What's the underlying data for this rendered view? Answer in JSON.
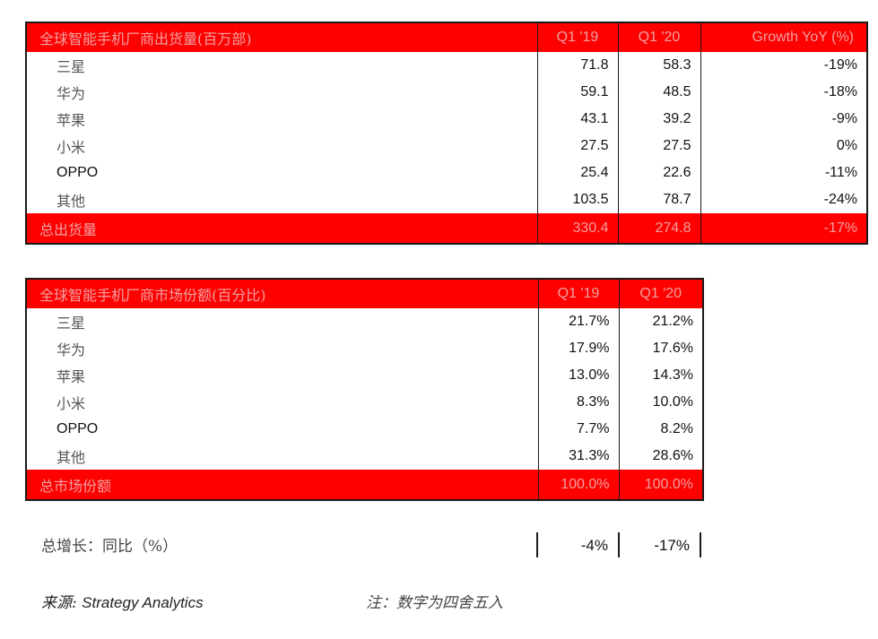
{
  "shipments": {
    "title": "全球智能手机厂商出货量(百万部)",
    "col_q1_19": "Q1 '19",
    "col_q1_20": "Q1 '20",
    "col_growth": "Growth YoY (%)",
    "rows": [
      {
        "vendor": "三星",
        "q1_19": "71.8",
        "q1_20": "58.3",
        "yoy": "-19%"
      },
      {
        "vendor": "华为",
        "q1_19": "59.1",
        "q1_20": "48.5",
        "yoy": "-18%"
      },
      {
        "vendor": "苹果",
        "q1_19": "43.1",
        "q1_20": "39.2",
        "yoy": "-9%"
      },
      {
        "vendor": "小米",
        "q1_19": "27.5",
        "q1_20": "27.5",
        "yoy": "0%"
      },
      {
        "vendor": "OPPO",
        "q1_19": "25.4",
        "q1_20": "22.6",
        "yoy": "-11%"
      },
      {
        "vendor": "其他",
        "q1_19": "103.5",
        "q1_20": "78.7",
        "yoy": "-24%"
      }
    ],
    "total": {
      "label": "总出货量",
      "q1_19": "330.4",
      "q1_20": "274.8",
      "yoy": "-17%"
    }
  },
  "share": {
    "title": "全球智能手机厂商市场份额(百分比)",
    "col_q1_19": "Q1 '19",
    "col_q1_20": "Q1 '20",
    "rows": [
      {
        "vendor": "三星",
        "q1_19": "21.7%",
        "q1_20": "21.2%"
      },
      {
        "vendor": "华为",
        "q1_19": "17.9%",
        "q1_20": "17.6%"
      },
      {
        "vendor": "苹果",
        "q1_19": "13.0%",
        "q1_20": "14.3%"
      },
      {
        "vendor": "小米",
        "q1_19": "8.3%",
        "q1_20": "10.0%"
      },
      {
        "vendor": "OPPO",
        "q1_19": "7.7%",
        "q1_20": "8.2%"
      },
      {
        "vendor": "其他",
        "q1_19": "31.3%",
        "q1_20": "28.6%"
      }
    ],
    "total": {
      "label": "总市场份额",
      "q1_19": "100.0%",
      "q1_20": "100.0%"
    }
  },
  "growth": {
    "label": "总增长：同比（%）",
    "q1_19": "-4%",
    "q1_20": "-17%"
  },
  "footer": {
    "source_prefix": "来源: ",
    "source_name": "Strategy Analytics",
    "note": "注：数字为四舍五入"
  },
  "colors": {
    "header_bg": "#ff0000",
    "header_text": "#f5b0b0",
    "border": "#1a1a1a"
  }
}
